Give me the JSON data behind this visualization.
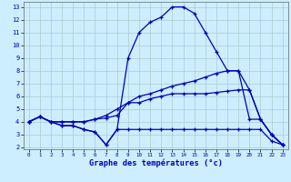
{
  "xlabel": "Graphe des températures (°c)",
  "bg_color": "#cceeff",
  "line_color": "#0000bb",
  "grid_color": "#aacccc",
  "xmin": 0,
  "xmax": 23,
  "ymin": 2,
  "ymax": 13,
  "lines": [
    {
      "x": [
        0,
        1,
        2,
        3,
        4,
        5,
        6,
        7,
        8,
        9,
        10,
        11,
        12,
        13,
        14,
        15,
        16,
        17,
        18,
        19,
        20,
        21,
        22,
        23
      ],
      "y": [
        4.0,
        4.4,
        4.0,
        3.7,
        3.7,
        3.4,
        3.2,
        2.2,
        3.4,
        9.0,
        11.0,
        11.8,
        12.2,
        13.0,
        13.0,
        12.5,
        11.0,
        9.5,
        8.0,
        8.0,
        4.2,
        4.2,
        3.0,
        2.2
      ]
    },
    {
      "x": [
        0,
        1,
        2,
        3,
        4,
        5,
        6,
        7,
        8,
        9,
        10,
        11,
        12,
        13,
        14,
        15,
        16,
        17,
        18,
        19,
        20,
        21,
        22,
        23
      ],
      "y": [
        4.0,
        4.4,
        4.0,
        4.0,
        4.0,
        4.0,
        4.2,
        4.5,
        5.0,
        5.5,
        6.0,
        6.2,
        6.5,
        6.8,
        7.0,
        7.2,
        7.5,
        7.8,
        8.0,
        8.0,
        6.5,
        4.2,
        3.0,
        2.2
      ]
    },
    {
      "x": [
        0,
        1,
        2,
        3,
        4,
        5,
        6,
        7,
        8,
        9,
        10,
        11,
        12,
        13,
        14,
        15,
        16,
        17,
        18,
        19,
        20,
        21,
        22,
        23
      ],
      "y": [
        4.0,
        4.4,
        4.0,
        4.0,
        4.0,
        4.0,
        4.2,
        4.3,
        4.5,
        5.5,
        5.5,
        5.8,
        6.0,
        6.2,
        6.2,
        6.2,
        6.2,
        6.3,
        6.4,
        6.5,
        6.5,
        4.2,
        3.0,
        2.2
      ]
    },
    {
      "x": [
        0,
        1,
        2,
        3,
        4,
        5,
        6,
        7,
        8,
        9,
        10,
        11,
        12,
        13,
        14,
        15,
        16,
        17,
        18,
        19,
        20,
        21,
        22,
        23
      ],
      "y": [
        4.0,
        4.4,
        4.0,
        3.7,
        3.7,
        3.4,
        3.2,
        2.2,
        3.4,
        3.4,
        3.4,
        3.4,
        3.4,
        3.4,
        3.4,
        3.4,
        3.4,
        3.4,
        3.4,
        3.4,
        3.4,
        3.4,
        2.5,
        2.2
      ]
    }
  ]
}
